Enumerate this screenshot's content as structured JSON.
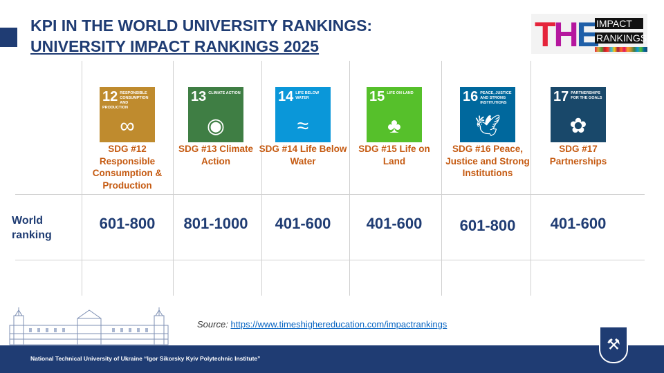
{
  "title": {
    "line1": "KPI IN THE WORLD UNIVERSITY RANKINGS:",
    "line2": "UNIVERSITY IMPACT RANKINGS 2025"
  },
  "logo": {
    "the": "THE",
    "impact": "IMPACT",
    "rankings": "RANKINGS"
  },
  "row_label": "World ranking",
  "sdgs": [
    {
      "num": "12",
      "icon_title": "RESPONSIBLE CONSUMPTION AND PRODUCTION",
      "label": "SDG #12 Responsible Consumption & Production",
      "ranking": "601-800",
      "color": "#bf8b2e",
      "glyph": "∞"
    },
    {
      "num": "13",
      "icon_title": "CLIMATE ACTION",
      "label": "SDG #13 Climate Action",
      "ranking": "801-1000",
      "color": "#3f7e44",
      "glyph": "◉"
    },
    {
      "num": "14",
      "icon_title": "LIFE BELOW WATER",
      "label": "SDG #14 Life Below Water",
      "ranking": "401-600",
      "color": "#0a97d9",
      "glyph": "≈"
    },
    {
      "num": "15",
      "icon_title": "LIFE ON LAND",
      "label": "SDG #15 Life on Land",
      "ranking": "401-600",
      "color": "#56c02b",
      "glyph": "♣"
    },
    {
      "num": "16",
      "icon_title": "PEACE, JUSTICE AND STRONG INSTITUTIONS",
      "label": "SDG #16 Peace, Justice and Strong Institutions",
      "ranking": "601-800",
      "color": "#00689d",
      "glyph": "🕊"
    },
    {
      "num": "17",
      "icon_title": "PARTNERSHIPS FOR THE GOALS",
      "label": "SDG #17 Partnerships",
      "ranking": "401-600",
      "color": "#19486a",
      "glyph": "✿"
    }
  ],
  "source": {
    "prefix": "Source:",
    "link": "https://www.timeshighereducation.com/impactrankings"
  },
  "footer": "National  Technical  University of  Ukraine “Igor  Sikorsky  Kyiv  Polytechnic Institute”"
}
